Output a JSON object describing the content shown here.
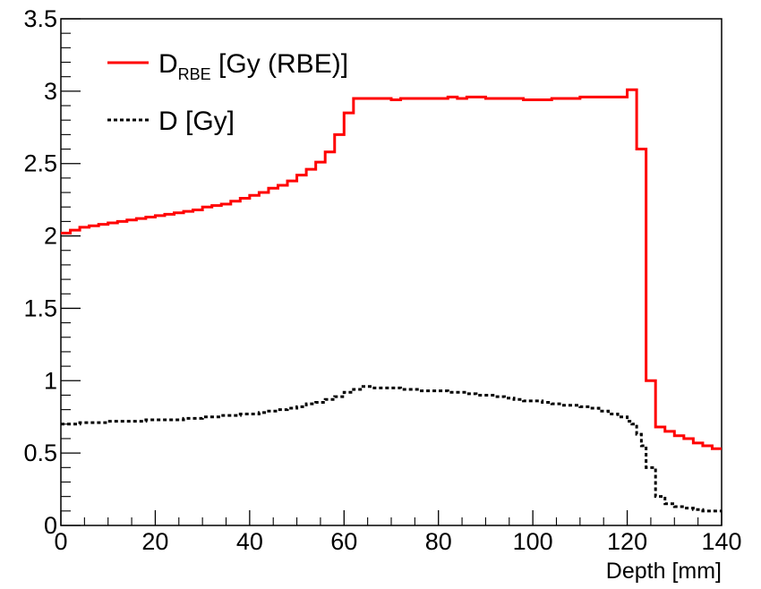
{
  "chart_data": {
    "type": "line",
    "title": "",
    "xlabel": "Depth [mm]",
    "ylabel": "",
    "xlim": [
      0,
      140
    ],
    "ylim": [
      0,
      3.5
    ],
    "xticks": [
      "0",
      "20",
      "40",
      "60",
      "80",
      "100",
      "120",
      "140"
    ],
    "yticks": [
      "0",
      "0.5",
      "1",
      "1.5",
      "2",
      "2.5",
      "3",
      "3.5"
    ],
    "grid": false,
    "legend_position": "top-left",
    "series": [
      {
        "name_main": "D",
        "name_sub": "RBE",
        "name_rest": " [Gy (RBE)]",
        "color": "#ff0000",
        "style": "solid",
        "bin_edges": [
          0,
          2,
          4,
          6,
          8,
          10,
          12,
          14,
          16,
          18,
          20,
          22,
          24,
          26,
          28,
          30,
          32,
          34,
          36,
          38,
          40,
          42,
          44,
          46,
          48,
          50,
          52,
          54,
          56,
          58,
          60,
          62,
          64,
          66,
          68,
          70,
          72,
          74,
          76,
          78,
          80,
          82,
          84,
          86,
          88,
          90,
          92,
          94,
          96,
          98,
          100,
          102,
          104,
          106,
          108,
          110,
          112,
          114,
          116,
          118,
          120,
          122,
          124,
          126,
          128,
          130,
          132,
          134,
          136,
          138,
          140
        ],
        "values": [
          2.02,
          2.04,
          2.06,
          2.07,
          2.08,
          2.09,
          2.1,
          2.11,
          2.12,
          2.13,
          2.14,
          2.15,
          2.16,
          2.17,
          2.18,
          2.2,
          2.21,
          2.22,
          2.24,
          2.26,
          2.28,
          2.3,
          2.33,
          2.35,
          2.38,
          2.42,
          2.46,
          2.51,
          2.58,
          2.7,
          2.85,
          2.95,
          2.95,
          2.95,
          2.95,
          2.94,
          2.95,
          2.95,
          2.95,
          2.95,
          2.95,
          2.96,
          2.95,
          2.96,
          2.96,
          2.95,
          2.95,
          2.95,
          2.95,
          2.94,
          2.94,
          2.94,
          2.95,
          2.95,
          2.95,
          2.96,
          2.96,
          2.96,
          2.96,
          2.96,
          3.01,
          2.6,
          1.0,
          0.68,
          0.65,
          0.62,
          0.6,
          0.57,
          0.55,
          0.53
        ]
      },
      {
        "name_main": "D [Gy]",
        "name_sub": "",
        "name_rest": "",
        "color": "#000000",
        "style": "dotted",
        "bin_edges": [
          0,
          2,
          4,
          6,
          8,
          10,
          12,
          14,
          16,
          18,
          20,
          22,
          24,
          26,
          28,
          30,
          32,
          34,
          36,
          38,
          40,
          42,
          44,
          46,
          48,
          50,
          52,
          54,
          56,
          58,
          60,
          62,
          64,
          66,
          68,
          70,
          72,
          74,
          76,
          78,
          80,
          82,
          84,
          86,
          88,
          90,
          92,
          94,
          96,
          98,
          100,
          102,
          104,
          106,
          108,
          110,
          112,
          114,
          116,
          118,
          120,
          121,
          122,
          123,
          124,
          126,
          128,
          130,
          132,
          134,
          136,
          138,
          140
        ],
        "values": [
          0.7,
          0.7,
          0.71,
          0.71,
          0.71,
          0.72,
          0.72,
          0.72,
          0.72,
          0.73,
          0.73,
          0.73,
          0.73,
          0.74,
          0.74,
          0.75,
          0.75,
          0.76,
          0.76,
          0.77,
          0.77,
          0.78,
          0.79,
          0.8,
          0.81,
          0.82,
          0.84,
          0.85,
          0.87,
          0.89,
          0.92,
          0.94,
          0.96,
          0.95,
          0.95,
          0.95,
          0.94,
          0.94,
          0.93,
          0.93,
          0.93,
          0.92,
          0.92,
          0.91,
          0.9,
          0.9,
          0.89,
          0.88,
          0.87,
          0.86,
          0.86,
          0.85,
          0.84,
          0.83,
          0.83,
          0.82,
          0.81,
          0.79,
          0.77,
          0.75,
          0.72,
          0.7,
          0.63,
          0.55,
          0.4,
          0.2,
          0.15,
          0.13,
          0.12,
          0.11,
          0.1,
          0.1
        ]
      }
    ]
  }
}
